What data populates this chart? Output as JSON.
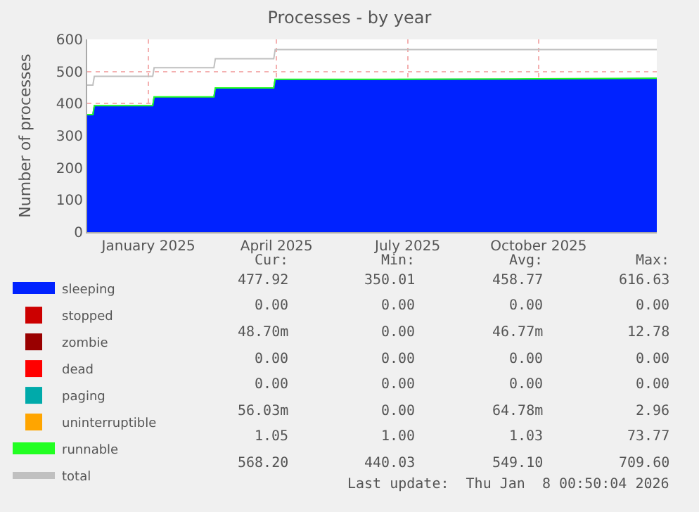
{
  "chart_data": {
    "type": "area",
    "title": "Processes - by year",
    "ylabel": "Number of processes",
    "x": [
      "2024-12-04",
      "2024-12-08",
      "2024-12-09",
      "2025-01-19",
      "2025-01-20",
      "2025-03-03",
      "2025-03-04",
      "2025-04-14",
      "2025-04-15",
      "2025-07-01",
      "2025-10-01",
      "2026-01-08"
    ],
    "stacked": true,
    "series": [
      {
        "name": "sleeping",
        "color": "#0022ff",
        "values": [
          365,
          365,
          393,
          393,
          420,
          420,
          448,
          448,
          475,
          475,
          476,
          478
        ]
      },
      {
        "name": "stopped",
        "color": "#cc0000",
        "values": [
          null,
          null,
          null,
          null,
          null,
          null,
          null,
          null,
          null,
          null,
          null,
          null
        ]
      },
      {
        "name": "zombie",
        "color": "#990000",
        "values": [
          null,
          null,
          null,
          null,
          null,
          null,
          null,
          null,
          null,
          null,
          null,
          null
        ]
      },
      {
        "name": "dead",
        "color": "#ff0000",
        "values": [
          null,
          null,
          null,
          null,
          null,
          null,
          null,
          null,
          null,
          null,
          null,
          null
        ]
      },
      {
        "name": "paging",
        "color": "#00aaaa",
        "values": [
          null,
          null,
          null,
          null,
          null,
          null,
          null,
          null,
          null,
          null,
          null,
          null
        ]
      },
      {
        "name": "uninterruptible",
        "color": "#ffa500",
        "values": [
          null,
          null,
          null,
          null,
          null,
          null,
          null,
          null,
          null,
          null,
          null,
          null
        ]
      },
      {
        "name": "runnable",
        "color": "#22ff22",
        "values": [
          1,
          1,
          1,
          1,
          1,
          1,
          1,
          1,
          1,
          1,
          1,
          1
        ]
      },
      {
        "name": "total",
        "type": "line",
        "color": "#c0c0c0",
        "values": [
          458,
          458,
          485,
          485,
          512,
          512,
          540,
          540,
          568,
          568,
          568,
          568
        ]
      }
    ],
    "xlim": [
      "2024-12-04",
      "2026-01-08"
    ],
    "xticks": [
      {
        "value": "2025-01-16",
        "label": "January 2025"
      },
      {
        "value": "2025-04-16",
        "label": "April 2025"
      },
      {
        "value": "2025-07-17",
        "label": "July 2025"
      },
      {
        "value": "2025-10-17",
        "label": "October 2025"
      }
    ],
    "ylim": [
      0,
      600
    ],
    "yticks": [
      0,
      100,
      200,
      300,
      400,
      500,
      600
    ],
    "grid": true,
    "legend": "bottom",
    "annotations": [
      "Cur:",
      "Min:",
      "Avg:",
      "Max:",
      "477.92",
      "350.01",
      "458.77",
      "616.63",
      "0.00",
      "0.00",
      "0.00",
      "0.00",
      "48.70m",
      "0.00",
      "46.77m",
      "12.78",
      "0.00",
      "0.00",
      "0.00",
      "0.00",
      "0.00",
      "0.00",
      "0.00",
      "0.00",
      "56.03m",
      "0.00",
      "64.78m",
      "2.96",
      "1.05",
      "1.00",
      "1.03",
      "73.77",
      "568.20",
      "440.03",
      "549.10",
      "709.60",
      "Last update:  Thu Jan  8 00:50:04 2026"
    ]
  }
}
